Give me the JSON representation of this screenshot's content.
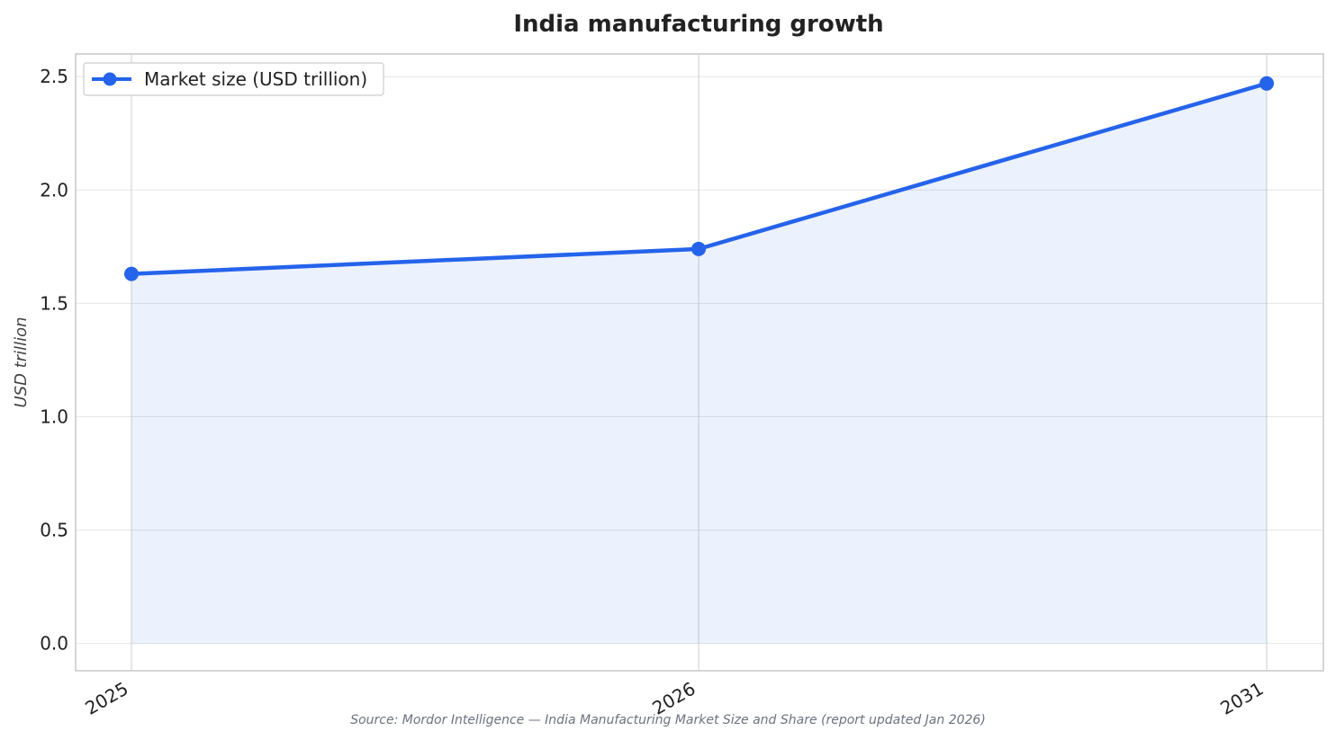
{
  "chart_data": {
    "type": "line",
    "title": "India manufacturing growth",
    "ylabel": "USD trillion",
    "xlabel": "",
    "x": [
      "2025",
      "2026",
      "2031"
    ],
    "series": [
      {
        "name": "Market size (USD trillion)",
        "values": [
          1.63,
          1.74,
          2.47
        ],
        "color": "#2563eb"
      }
    ],
    "yticks": [
      "0.0",
      "0.5",
      "1.0",
      "1.5",
      "2.0",
      "2.5"
    ],
    "ylim": [
      -0.12,
      2.6
    ],
    "grid": true,
    "area_fill": true,
    "legend_position": "top-left",
    "source": "Source: Mordor Intelligence — India Manufacturing Market Size and Share (report updated Jan 2026)"
  }
}
